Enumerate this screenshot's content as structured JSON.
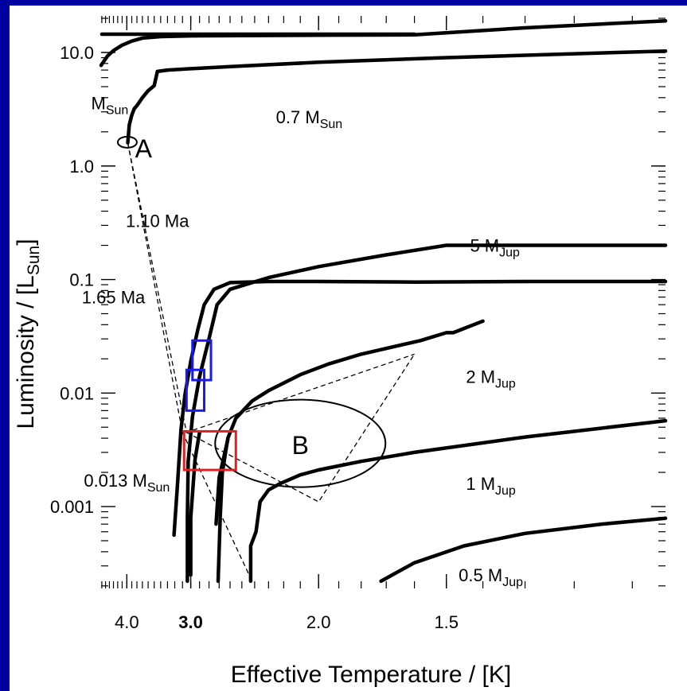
{
  "colors": {
    "background": "#0000a0",
    "panel": "#ffffff",
    "ink": "#000000",
    "box_blue": "#1a1aee",
    "box_red": "#e02020"
  },
  "chart_data": {
    "type": "line",
    "title": "",
    "xlabel": "Effective Temperature / [K]",
    "ylabel": "Luminosity / [L",
    "ylabel_sub": "Sun",
    "ylabel_close": "]",
    "x_scale": "reciprocal",
    "y_scale": "log",
    "xlim": [
      4.62,
      1.05
    ],
    "ylim": [
      0.00019,
      21
    ],
    "x_ticks": [
      {
        "value": 4.0,
        "label": "4.0"
      },
      {
        "value": 3.0,
        "label": "3.0",
        "bold": true
      },
      {
        "value": 2.0,
        "label": "2.0"
      },
      {
        "value": 1.5,
        "label": "1.5"
      }
    ],
    "y_ticks": [
      {
        "value": 10,
        "label": "10.0"
      },
      {
        "value": 1,
        "label": "1.0"
      },
      {
        "value": 0.1,
        "label": "0.1"
      },
      {
        "value": 0.01,
        "label": "0.01"
      },
      {
        "value": 0.001,
        "label": "0.001"
      }
    ],
    "series": [
      {
        "name": "M",
        "name_sub": "Sun",
        "points": [
          [
            4.62,
            7.7
          ],
          [
            4.45,
            9.3
          ],
          [
            4.3,
            10.4
          ],
          [
            4.1,
            11.6
          ],
          [
            3.9,
            12.6
          ],
          [
            3.7,
            13.4
          ],
          [
            3.4,
            13.8
          ],
          [
            3.0,
            14.0
          ],
          [
            2.5,
            14.1
          ],
          [
            2.0,
            14.2
          ],
          [
            1.6,
            14.3
          ],
          [
            1.3,
            16.5
          ],
          [
            1.05,
            19.0
          ]
        ]
      },
      {
        "name": "",
        "points": [
          [
            4.6,
            14.5
          ],
          [
            4.0,
            14.5
          ],
          [
            3.0,
            14.5
          ],
          [
            2.0,
            14.5
          ],
          [
            1.6,
            14.5
          ]
        ]
      },
      {
        "name": "0.7 M",
        "name_sub": "Sun",
        "points": [
          [
            3.98,
            1.6
          ],
          [
            3.95,
            2.3
          ],
          [
            3.9,
            2.8
          ],
          [
            3.85,
            3.2
          ],
          [
            3.8,
            3.4
          ],
          [
            3.7,
            4.0
          ],
          [
            3.6,
            4.6
          ],
          [
            3.5,
            5.1
          ],
          [
            3.45,
            6.8
          ],
          [
            3.3,
            7.0
          ],
          [
            3.0,
            7.2
          ],
          [
            2.5,
            7.6
          ],
          [
            2.0,
            8.2
          ],
          [
            1.5,
            9.0
          ],
          [
            1.05,
            10.3
          ]
        ]
      },
      {
        "name": "",
        "points": [
          [
            3.21,
            0.00056
          ],
          [
            3.16,
            0.0017
          ],
          [
            3.12,
            0.0047
          ],
          [
            3.07,
            0.0096
          ],
          [
            3.0,
            0.019
          ],
          [
            2.92,
            0.036
          ],
          [
            2.85,
            0.06
          ],
          [
            2.75,
            0.082
          ],
          [
            2.6,
            0.094
          ],
          [
            2.3,
            0.096
          ],
          [
            2.0,
            0.096
          ],
          [
            1.6,
            0.095
          ],
          [
            1.3,
            0.096
          ],
          [
            1.05,
            0.096
          ]
        ]
      },
      {
        "name": "5 M",
        "name_sub": "Jup",
        "points": [
          [
            3.04,
            0.00022
          ],
          [
            3.04,
            0.0008
          ],
          [
            3.03,
            0.0025
          ],
          [
            2.98,
            0.0062
          ],
          [
            2.9,
            0.014
          ],
          [
            2.8,
            0.03
          ],
          [
            2.72,
            0.06
          ],
          [
            2.6,
            0.082
          ],
          [
            2.3,
            0.104
          ],
          [
            2.0,
            0.13
          ],
          [
            1.7,
            0.165
          ],
          [
            1.5,
            0.2
          ],
          [
            1.3,
            0.2
          ],
          [
            1.05,
            0.2
          ]
        ]
      },
      {
        "name": "2 M",
        "name_sub": "Jup",
        "points": [
          [
            2.71,
            0.00022
          ],
          [
            2.69,
            0.0008
          ],
          [
            2.67,
            0.002
          ],
          [
            2.62,
            0.004
          ],
          [
            2.55,
            0.006
          ],
          [
            2.42,
            0.0085
          ],
          [
            2.3,
            0.0105
          ],
          [
            2.1,
            0.0145
          ],
          [
            1.95,
            0.018
          ],
          [
            1.8,
            0.022
          ],
          [
            1.58,
            0.029
          ],
          [
            1.5,
            0.034
          ],
          [
            1.48,
            0.034
          ],
          [
            1.4,
            0.043
          ]
        ]
      },
      {
        "name": "1 M",
        "name_sub": "Jup",
        "points": [
          [
            2.43,
            0.00022
          ],
          [
            2.43,
            0.00045
          ],
          [
            2.39,
            0.0006
          ],
          [
            2.36,
            0.0011
          ],
          [
            2.3,
            0.0014
          ],
          [
            2.22,
            0.0016
          ],
          [
            2.1,
            0.0019
          ],
          [
            2.0,
            0.0021
          ],
          [
            1.8,
            0.0025
          ],
          [
            1.6,
            0.003
          ],
          [
            1.3,
            0.0041
          ],
          [
            1.05,
            0.0057
          ]
        ]
      },
      {
        "name": "",
        "points": [
          [
            1.72,
            0.00022
          ],
          [
            1.6,
            0.00032
          ],
          [
            1.45,
            0.00045
          ],
          [
            1.3,
            0.00058
          ],
          [
            1.15,
            0.0007
          ],
          [
            1.05,
            0.00079
          ]
        ]
      },
      {
        "name": "",
        "points": [
          [
            3.0,
            0.00025
          ],
          [
            3.0,
            0.0008
          ],
          [
            2.95,
            0.0026
          ],
          [
            2.9,
            0.0045
          ]
        ]
      },
      {
        "name": "",
        "points": [
          [
            2.73,
            0.0007
          ],
          [
            2.7,
            0.0018
          ],
          [
            2.62,
            0.0039
          ]
        ]
      }
    ],
    "isochrones": [
      {
        "label": "1.10 Ma",
        "points": [
          [
            3.98,
            1.6
          ],
          [
            3.05,
            0.0045
          ],
          [
            1.6,
            0.022
          ]
        ]
      },
      {
        "label": "1.65 Ma",
        "points": [
          [
            3.98,
            1.6
          ],
          [
            3.1,
            0.0045
          ],
          [
            2.42,
            0.00022
          ]
        ]
      },
      {
        "label": "",
        "points": [
          [
            3.05,
            0.0045
          ],
          [
            2.0,
            0.0011
          ],
          [
            1.6,
            0.022
          ]
        ]
      }
    ],
    "annotations": [
      {
        "text": "M",
        "sub": "Sun",
        "x": 4.39,
        "y": 3.6
      },
      {
        "text": "0.7 M",
        "sub": "Sun",
        "x": 2.05,
        "y": 2.7
      },
      {
        "text": "A",
        "x": 3.68,
        "y": 1.35
      },
      {
        "text": "1.10 Ma",
        "x": 3.45,
        "y": 0.33
      },
      {
        "text": "5 M",
        "sub": "Jup",
        "x": 1.37,
        "y": 0.2
      },
      {
        "text": "1.65 Ma",
        "x": 4.3,
        "y": 0.07
      },
      {
        "text": "2 M",
        "sub": "Jup",
        "x": 1.38,
        "y": 0.014
      },
      {
        "text": "B",
        "x": 2.1,
        "y": 0.0033
      },
      {
        "text": "0.013 M",
        "sub": "Sun",
        "x": 4.0,
        "y": 0.0017
      },
      {
        "text": "1 M",
        "sub": "Jup",
        "x": 1.38,
        "y": 0.0016
      },
      {
        "text": "0.5 M",
        "sub": "Jup",
        "x": 1.38,
        "y": 0.00025
      }
    ],
    "regions": [
      {
        "name": "A",
        "shape": "ellipse",
        "center": [
          3.99,
          1.62
        ],
        "color": "#000000"
      },
      {
        "name": "B",
        "shape": "ellipse",
        "center": [
          2.1,
          0.0036
        ],
        "color": "#000000"
      },
      {
        "name": "box-1",
        "shape": "rect",
        "x": [
          3.05,
          2.85
        ],
        "y": [
          0.007,
          0.016
        ],
        "color": "#1a1aee"
      },
      {
        "name": "box-2",
        "shape": "rect",
        "x": [
          2.98,
          2.78
        ],
        "y": [
          0.013,
          0.029
        ],
        "color": "#1a1aee"
      },
      {
        "name": "box-3",
        "shape": "rect",
        "x": [
          3.08,
          2.55
        ],
        "y": [
          0.0021,
          0.0046
        ],
        "color": "#e02020"
      }
    ]
  }
}
